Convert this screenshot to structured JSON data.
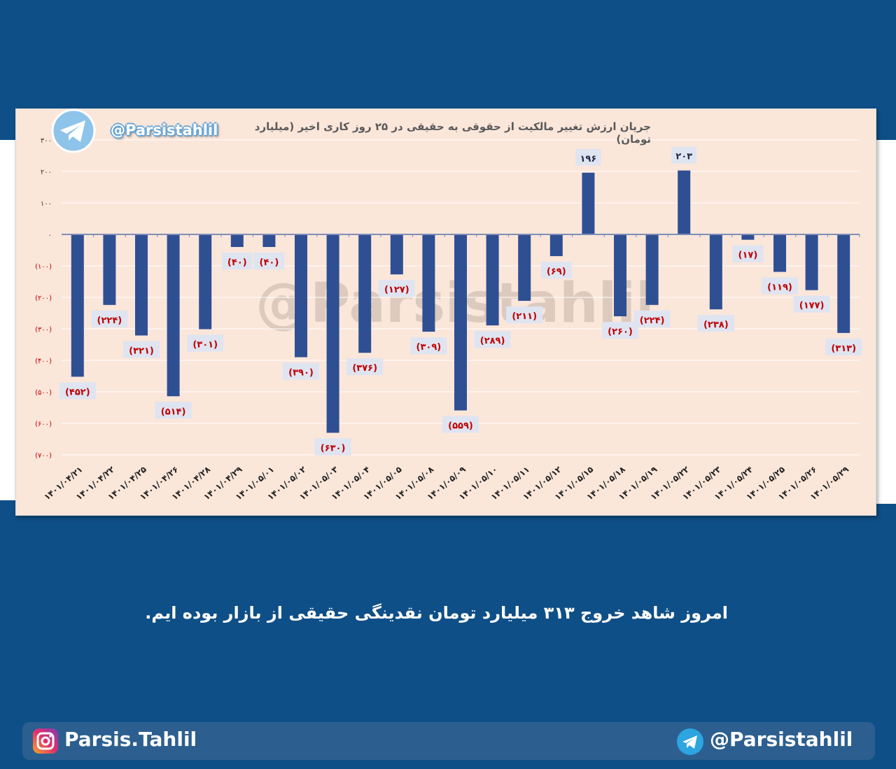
{
  "title": "جریان ارزش تغییر مالکیت از حقوقی به حقیقی در ۲۵ روز کاری اخیر (میلیارد تومان)",
  "watermark": "@Parsistahlil",
  "handle_top": "@Parsistahlil",
  "caption": "امروز شاهد خروج ۳۱۳ میلیارد تومان نقدینگی حقیقی از بازار بوده ایم.",
  "footer": {
    "instagram_icon": "instagram-icon",
    "instagram_handle": "Parsis.Tahlil",
    "telegram_icon": "telegram-icon",
    "telegram_handle": "@Parsistahlil"
  },
  "colors": {
    "background": "#0f4f87",
    "plot_bg": "#fbe6da",
    "bar": "#2f4f93",
    "neg_label": "#c00000",
    "pos_label": "#1f2a44",
    "label_box": "#dfe4f1"
  },
  "chart_data": {
    "type": "bar",
    "categories": [
      "۱۴۰۱/۰۴/۲۱",
      "۱۴۰۱/۰۴/۲۲",
      "۱۴۰۱/۰۴/۲۵",
      "۱۴۰۱/۰۴/۲۶",
      "۱۴۰۱/۰۴/۲۸",
      "۱۴۰۱/۰۴/۲۹",
      "۱۴۰۱/۰۵/۰۱",
      "۱۴۰۱/۰۵/۰۲",
      "۱۴۰۱/۰۵/۰۳",
      "۱۴۰۱/۰۵/۰۴",
      "۱۴۰۱/۰۵/۰۵",
      "۱۴۰۱/۰۵/۰۸",
      "۱۴۰۱/۰۵/۰۹",
      "۱۴۰۱/۰۵/۱۰",
      "۱۴۰۱/۰۵/۱۱",
      "۱۴۰۱/۰۵/۱۲",
      "۱۴۰۱/۰۵/۱۵",
      "۱۴۰۱/۰۵/۱۸",
      "۱۴۰۱/۰۵/۱۹",
      "۱۴۰۱/۰۵/۲۲",
      "۱۴۰۱/۰۵/۲۳",
      "۱۴۰۱/۰۵/۲۴",
      "۱۴۰۱/۰۵/۲۵",
      "۱۴۰۱/۰۵/۲۶",
      "۱۴۰۱/۰۵/۲۹"
    ],
    "values": [
      -452,
      -224,
      -321,
      -514,
      -301,
      -40,
      -40,
      -390,
      -630,
      -376,
      -127,
      -309,
      -559,
      -289,
      -211,
      -69,
      196,
      -260,
      -224,
      203,
      -238,
      -17,
      -119,
      -177,
      -313
    ],
    "data_labels": [
      "(۴۵۲)",
      "(۲۲۴)",
      "(۳۲۱)",
      "(۵۱۴)",
      "(۳۰۱)",
      "(۴۰)",
      "(۴۰)",
      "(۳۹۰)",
      "(۶۳۰)",
      "(۳۷۶)",
      "(۱۲۷)",
      "(۳۰۹)",
      "(۵۵۹)",
      "(۲۸۹)",
      "(۲۱۱)",
      "(۶۹)",
      "۱۹۶",
      "(۲۶۰)",
      "(۲۲۴)",
      "۲۰۳",
      "(۲۳۸)",
      "(۱۷)",
      "(۱۱۹)",
      "(۱۷۷)",
      "(۳۱۳)"
    ],
    "yticks": [
      300,
      200,
      100,
      0,
      -100,
      -200,
      -300,
      -400,
      -500,
      -600,
      -700
    ],
    "ytick_labels": [
      "۳۰۰",
      "۲۰۰",
      "۱۰۰",
      "۰",
      "(۱۰۰)",
      "(۲۰۰)",
      "(۳۰۰)",
      "(۴۰۰)",
      "(۵۰۰)",
      "(۶۰۰)",
      "(۷۰۰)"
    ],
    "ylim": [
      -700,
      300
    ],
    "grid": true,
    "xlabel": "",
    "ylabel": ""
  }
}
